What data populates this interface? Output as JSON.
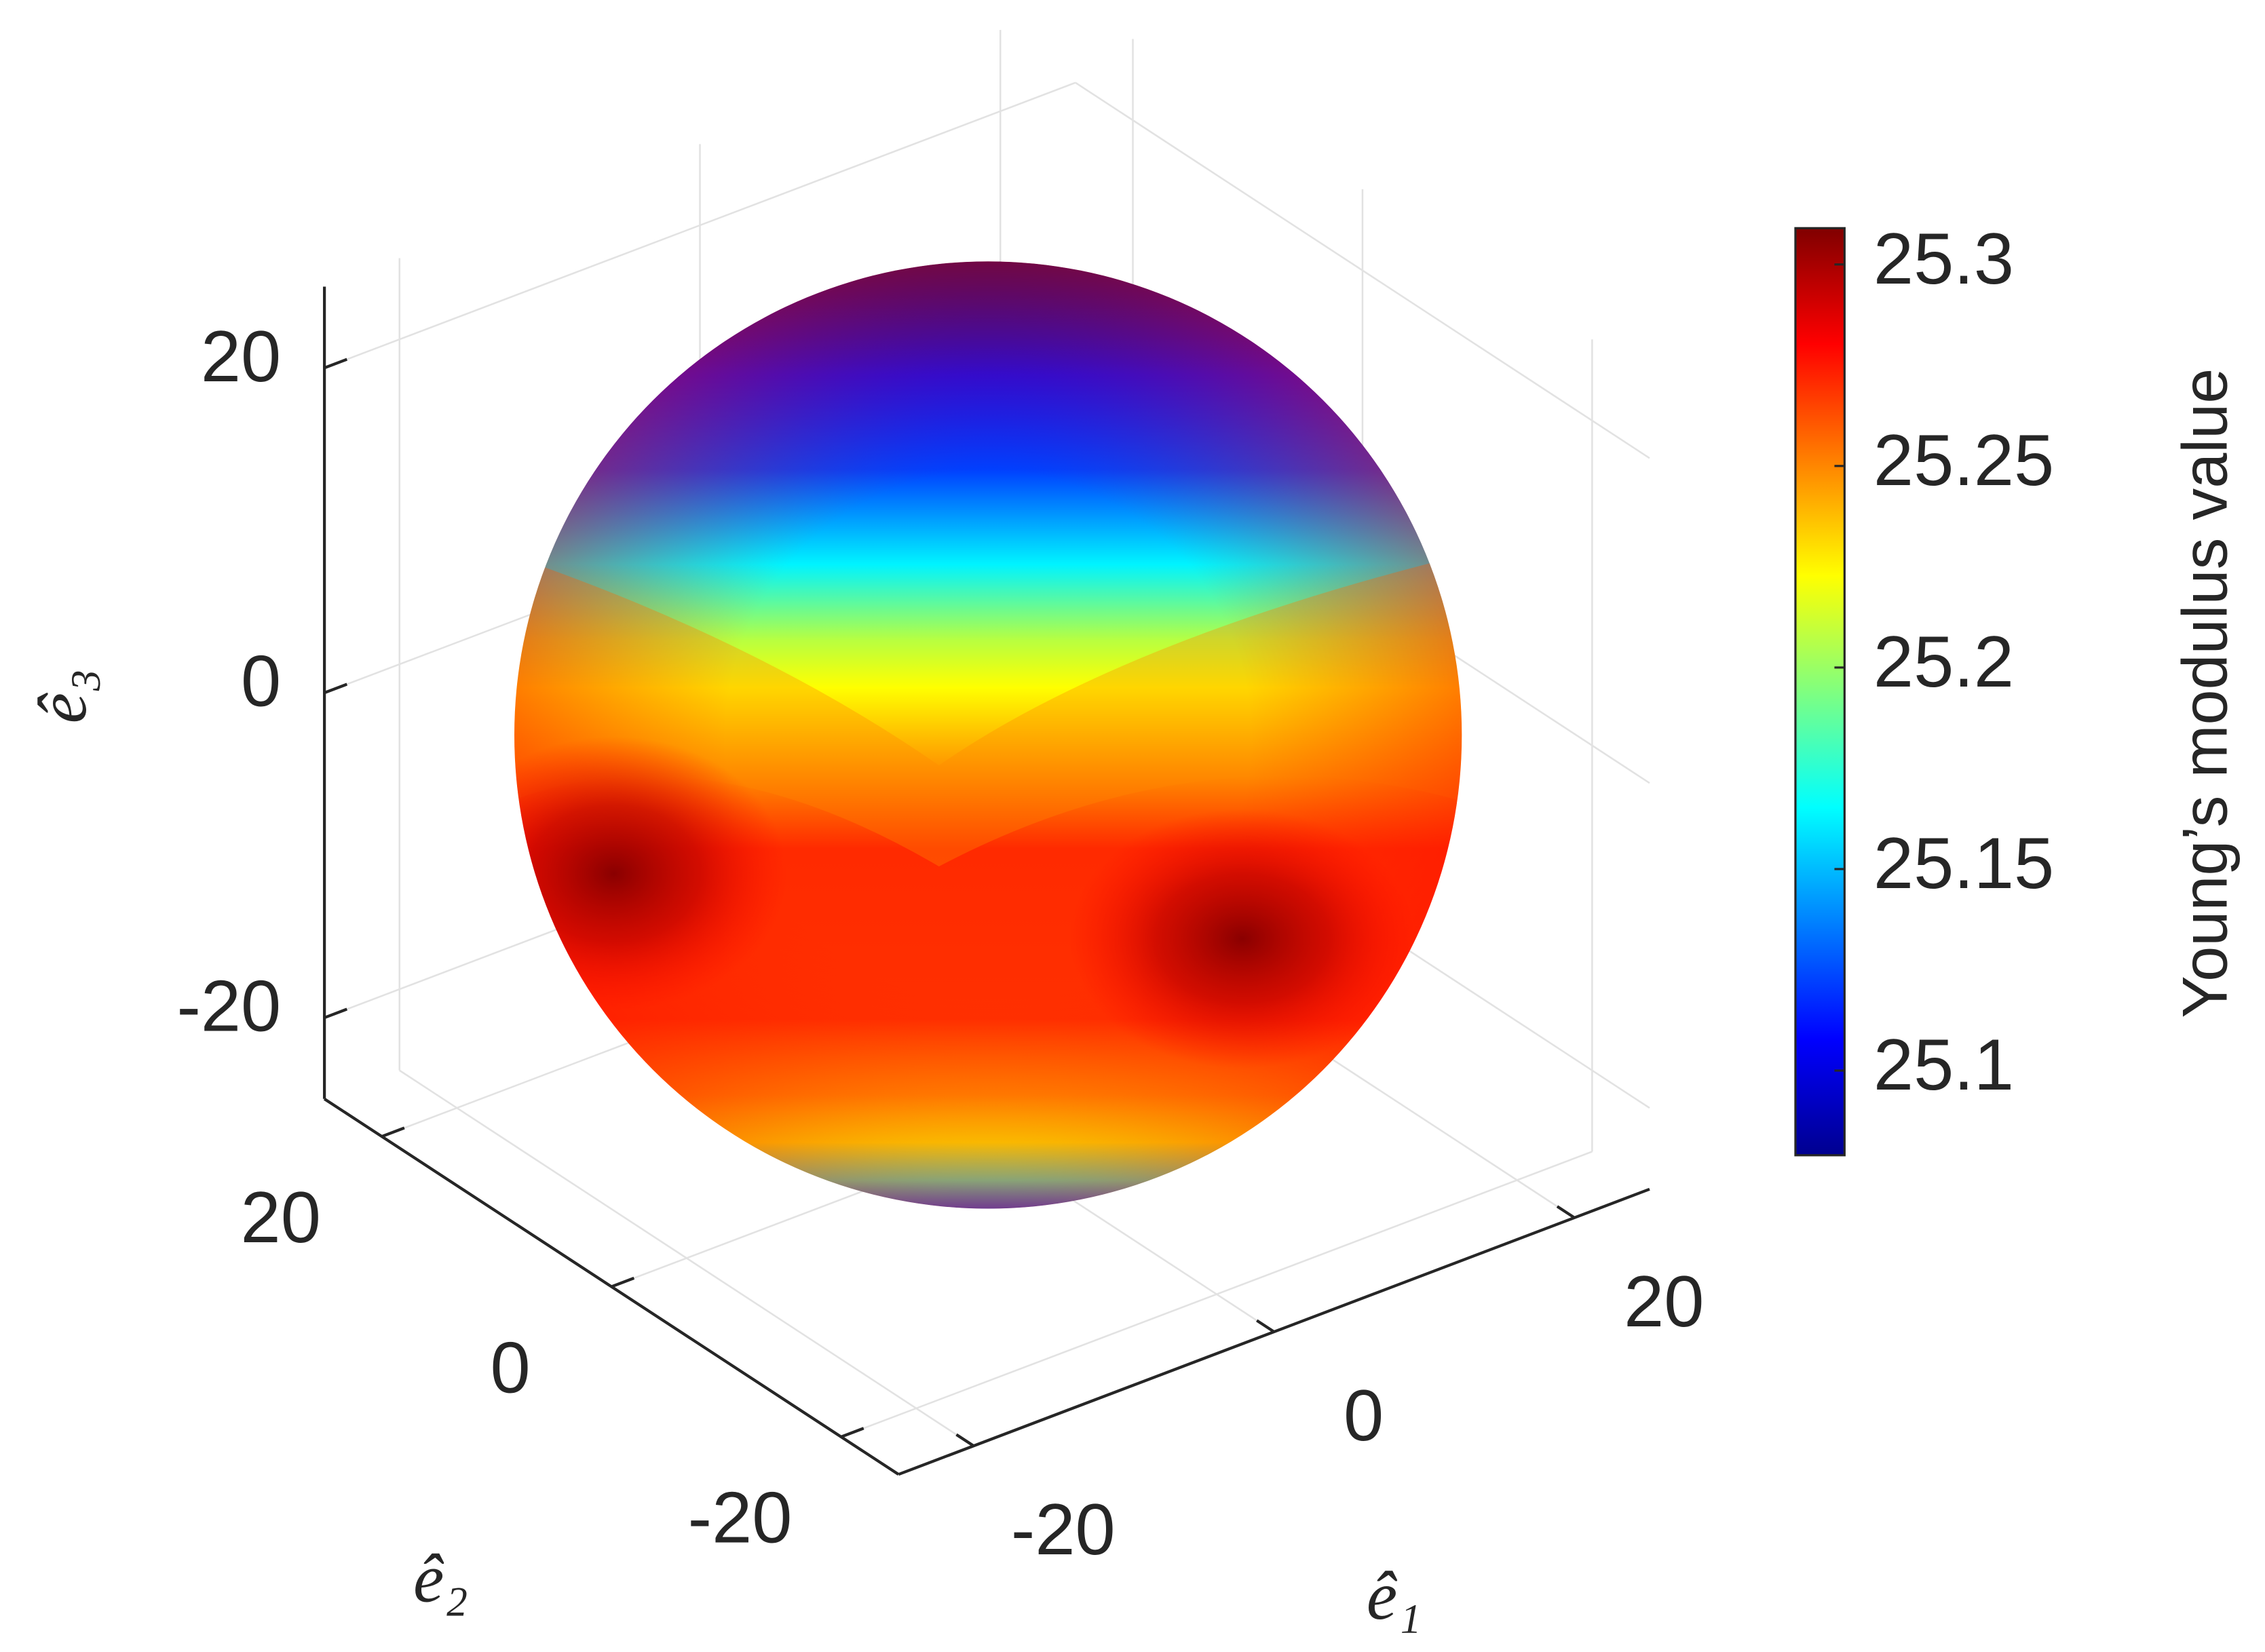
{
  "chart_data": {
    "type": "surface",
    "xlabel": "ê₁",
    "ylabel": "ê₂",
    "zlabel": "ê₃",
    "xlim": [
      -25,
      25
    ],
    "ylim": [
      -25,
      25
    ],
    "zlim": [
      -25,
      25
    ],
    "xticks": [
      -20,
      0,
      20
    ],
    "yticks": [
      -20,
      0,
      20
    ],
    "zticks": [
      -20,
      0,
      20
    ],
    "grid": true,
    "colormap": "jet",
    "colorbar": {
      "label": "Young’s modulus value",
      "clim": [
        25.079,
        25.309
      ],
      "ticks": [
        25.1,
        25.15,
        25.2,
        25.25,
        25.3
      ]
    }
  }
}
